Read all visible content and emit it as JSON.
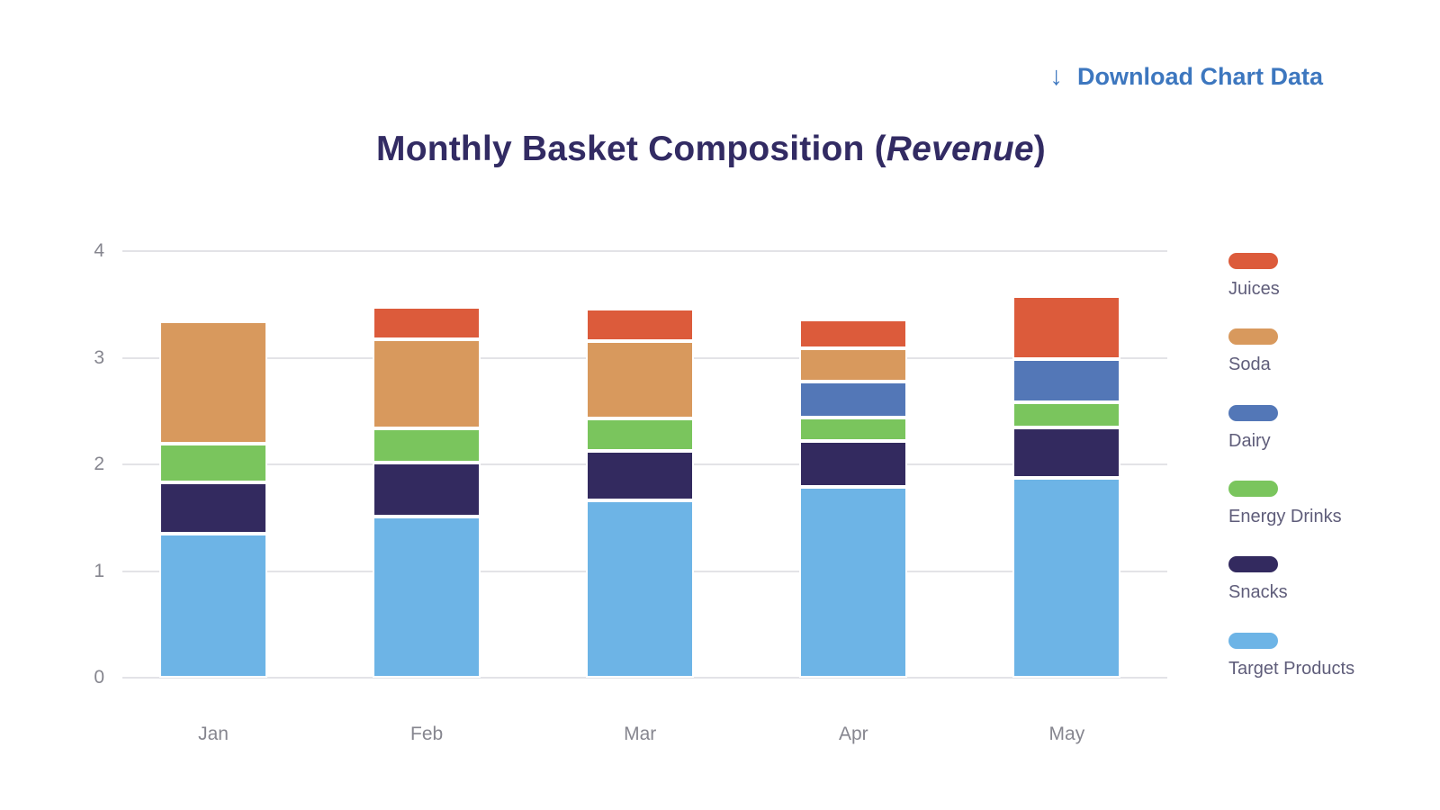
{
  "header": {
    "download": {
      "label": "Download Chart Data",
      "icon_glyph": "↓",
      "color": "#3d77bf"
    },
    "title": {
      "prefix": "Monthly Basket Composition (",
      "emphasis": "Revenue",
      "suffix": ")",
      "color": "#322b63"
    }
  },
  "chart_data": {
    "type": "bar",
    "stacked": true,
    "title": "Monthly Basket Composition (Revenue)",
    "categories": [
      "Jan",
      "Feb",
      "Mar",
      "Apr",
      "May"
    ],
    "series": [
      {
        "name": "Target Products",
        "color": "#6db4e6",
        "values": [
          1.35,
          1.51,
          1.66,
          1.79,
          1.87
        ]
      },
      {
        "name": "Snacks",
        "color": "#332a5f",
        "values": [
          0.48,
          0.51,
          0.47,
          0.43,
          0.48
        ]
      },
      {
        "name": "Energy Drinks",
        "color": "#7ac55d",
        "values": [
          0.36,
          0.32,
          0.3,
          0.22,
          0.23
        ]
      },
      {
        "name": "Dairy",
        "color": "#5377b7",
        "values": [
          0,
          0,
          0,
          0.34,
          0.41
        ]
      },
      {
        "name": "Soda",
        "color": "#d8995d",
        "values": [
          1.15,
          0.83,
          0.73,
          0.31,
          0
        ]
      },
      {
        "name": "Juices",
        "color": "#dc5b3b",
        "values": [
          0,
          0.31,
          0.3,
          0.27,
          0.59
        ]
      }
    ],
    "totals": [
      3.34,
      3.48,
      3.46,
      3.36,
      3.58
    ],
    "legend_order": [
      "Juices",
      "Soda",
      "Dairy",
      "Energy Drinks",
      "Snacks",
      "Target Products"
    ],
    "legend_position": "right",
    "xlabel": "",
    "ylabel": "",
    "y_ticks": [
      0,
      1,
      2,
      3,
      4
    ],
    "ylim": [
      0,
      4
    ],
    "grid": true,
    "grid_color": "#e3e3e7",
    "axis_text_color": "#86868f"
  }
}
